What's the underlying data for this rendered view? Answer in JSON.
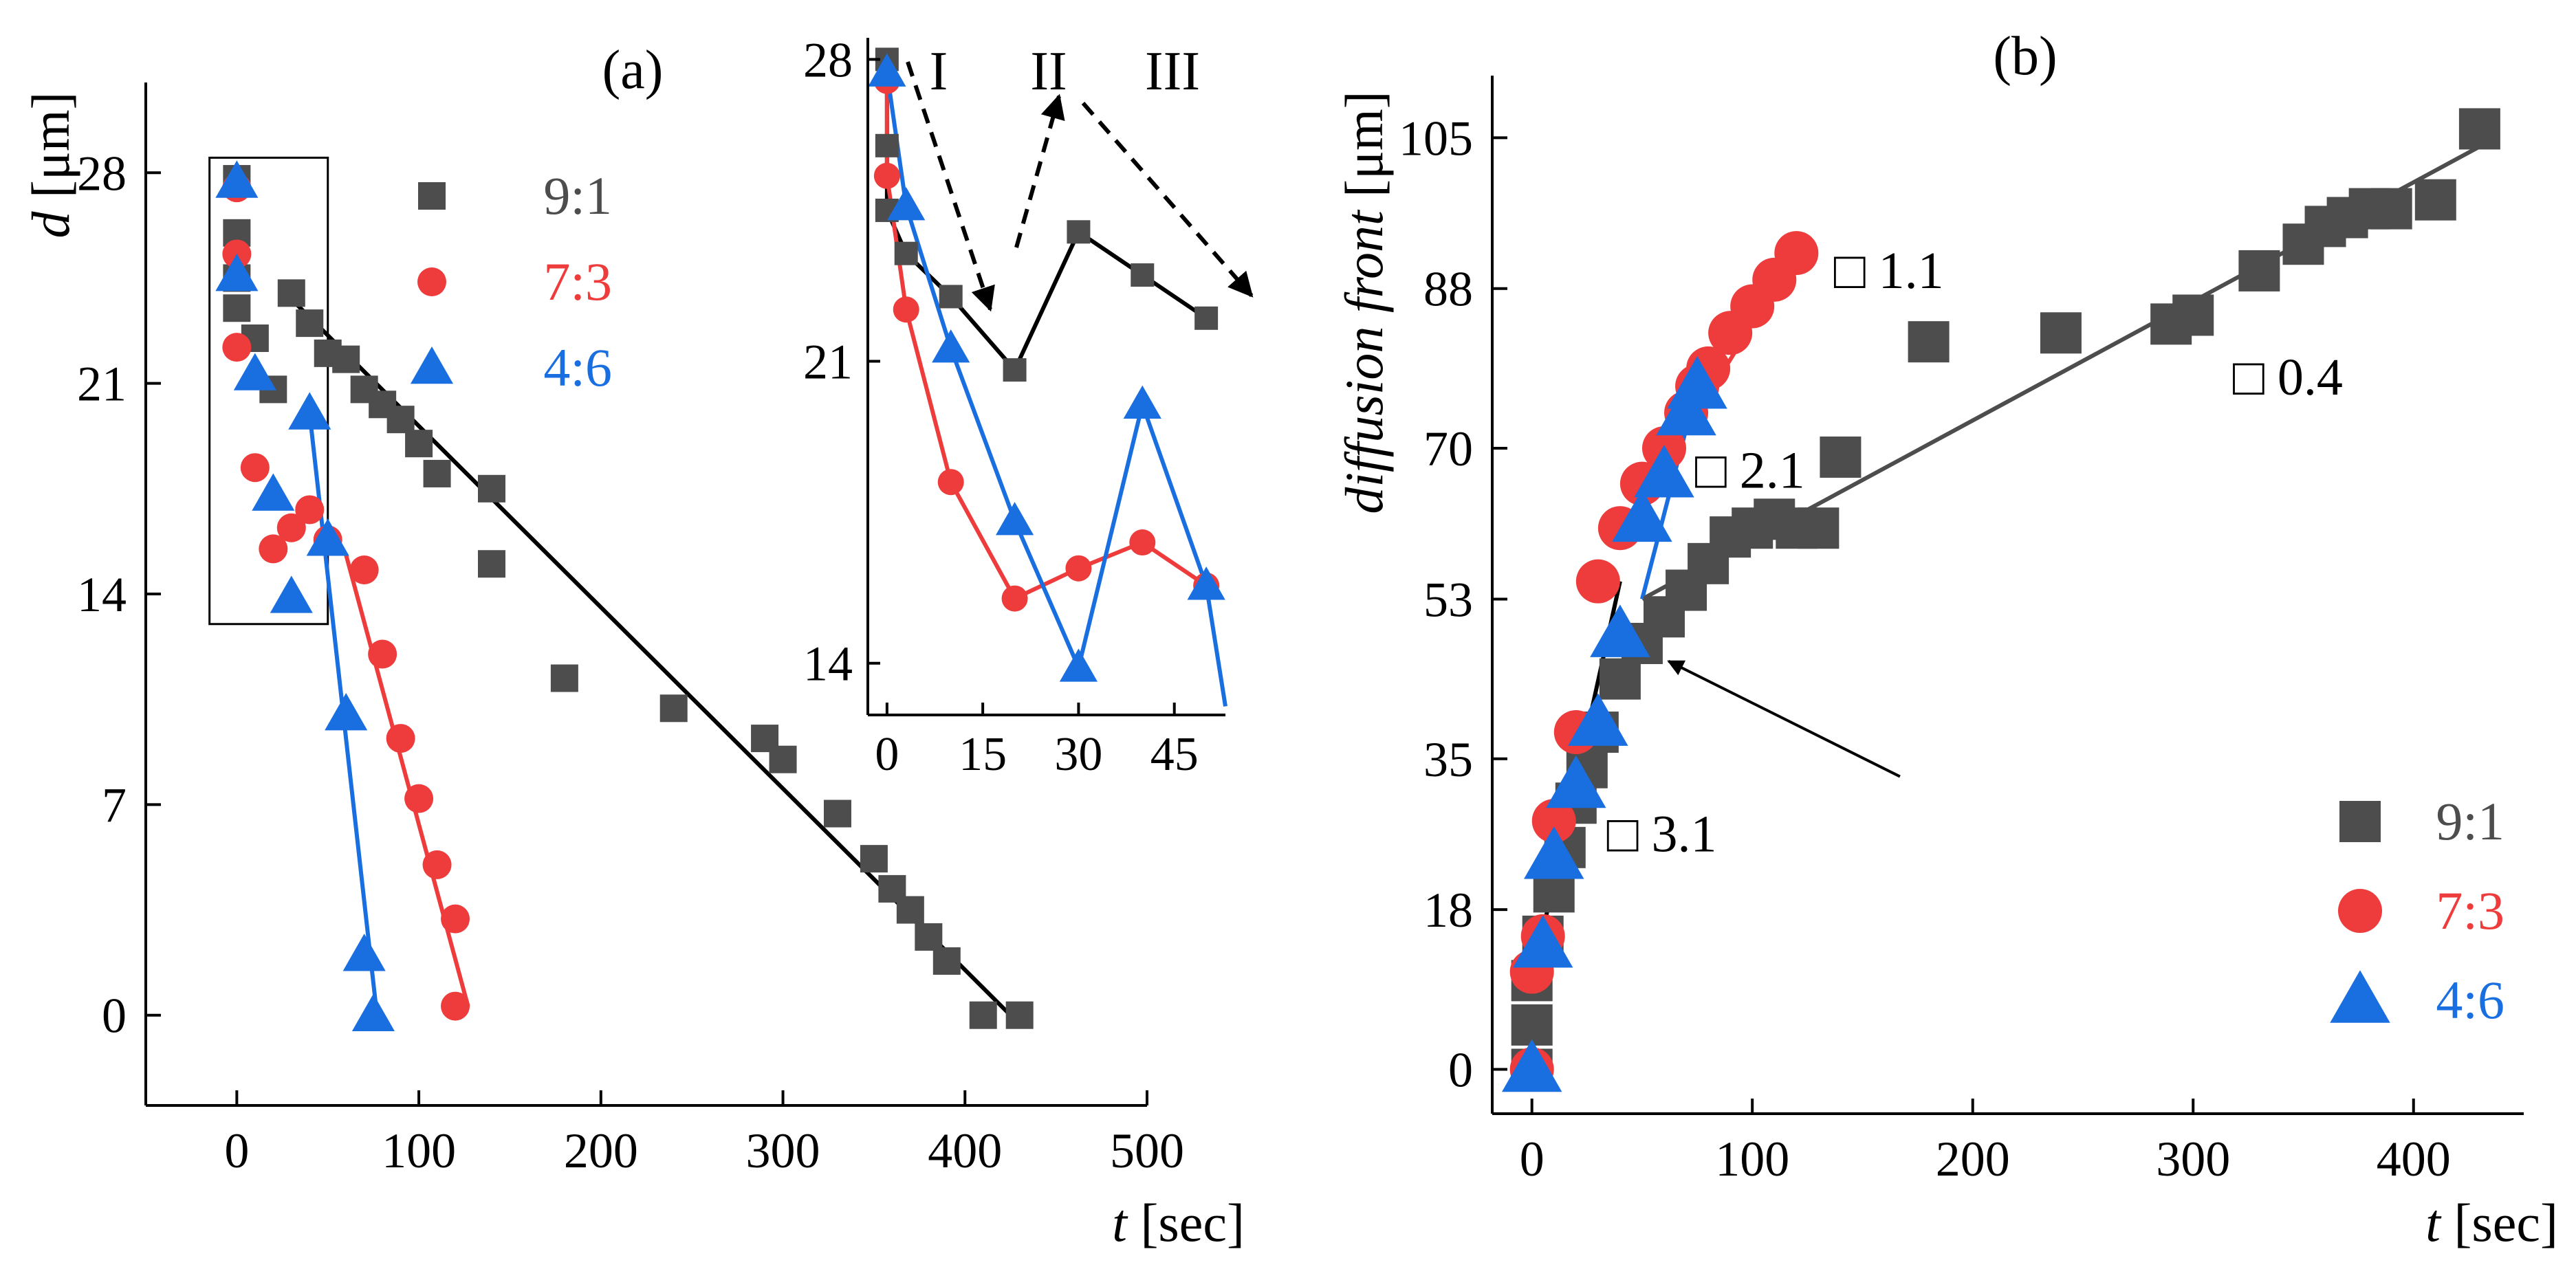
{
  "chart_data": [
    {
      "panel": "(a)",
      "type": "scatter",
      "xlabel_var": "t",
      "xlabel_unit": "[sec]",
      "ylabel_var": "d",
      "ylabel_unit": "[μm]",
      "xlim": [
        -50,
        500
      ],
      "ylim": [
        -3,
        31
      ],
      "xticks": [
        0,
        100,
        200,
        300,
        400,
        500
      ],
      "yticks": [
        0,
        7,
        14,
        21,
        28
      ],
      "legend": "top-right",
      "series": [
        {
          "name": "9:1",
          "color": "#4d4d4d",
          "marker": "square",
          "points": [
            [
              0,
              27.8
            ],
            [
              0,
              26
            ],
            [
              0,
              24.5
            ],
            [
              0,
              23.5
            ],
            [
              10,
              22.5
            ],
            [
              20,
              20.8
            ],
            [
              30,
              24
            ],
            [
              40,
              23
            ],
            [
              50,
              22
            ],
            [
              60,
              21.8
            ],
            [
              70,
              20.8
            ],
            [
              80,
              20.3
            ],
            [
              90,
              19.8
            ],
            [
              100,
              19
            ],
            [
              110,
              18
            ],
            [
              140,
              17.5
            ],
            [
              140,
              15
            ],
            [
              180,
              11.2
            ],
            [
              240,
              10.2
            ],
            [
              290,
              9.2
            ],
            [
              300,
              8.5
            ],
            [
              330,
              6.7
            ],
            [
              350,
              5.2
            ],
            [
              360,
              4.2
            ],
            [
              370,
              3.5
            ],
            [
              380,
              2.6
            ],
            [
              390,
              1.8
            ],
            [
              410,
              0
            ],
            [
              430,
              0
            ]
          ]
        },
        {
          "name": "7:3",
          "color": "#ee3b3b",
          "marker": "circle",
          "points": [
            [
              0,
              27.5
            ],
            [
              0,
              25.3
            ],
            [
              0,
              22.2
            ],
            [
              10,
              18.2
            ],
            [
              20,
              15.5
            ],
            [
              30,
              16.2
            ],
            [
              40,
              16.8
            ],
            [
              50,
              15.8
            ],
            [
              70,
              14.8
            ],
            [
              80,
              12
            ],
            [
              90,
              9.2
            ],
            [
              100,
              7.2
            ],
            [
              110,
              5
            ],
            [
              120,
              3.2
            ],
            [
              120,
              0.3
            ]
          ]
        },
        {
          "name": "4:6",
          "color": "#1a6fe0",
          "marker": "triangle",
          "points": [
            [
              0,
              27.7
            ],
            [
              0,
              24.6
            ],
            [
              10,
              21.3
            ],
            [
              20,
              17.3
            ],
            [
              30,
              13.9
            ],
            [
              40,
              20
            ],
            [
              50,
              15.8
            ],
            [
              60,
              10
            ],
            [
              70,
              2
            ],
            [
              75,
              0
            ]
          ]
        }
      ],
      "fit_lines": [
        {
          "series": "9:1",
          "color": "#000000",
          "points": [
            [
              30,
              23.8
            ],
            [
              425,
              0
            ]
          ]
        },
        {
          "series": "7:3",
          "color": "#ee3b3b",
          "points": [
            [
              60,
              15.3
            ],
            [
              127,
              0.3
            ]
          ]
        },
        {
          "series": "4:6",
          "color": "#1a6fe0",
          "points": [
            [
              40,
              20
            ],
            [
              77,
              0
            ]
          ]
        }
      ],
      "highlight_box": [
        [
          -15,
          13
        ],
        [
          50,
          28.5
        ]
      ],
      "inset": {
        "xlim": [
          -3,
          53
        ],
        "ylim": [
          12.8,
          28.5
        ],
        "xticks": [
          0,
          15,
          30,
          45
        ],
        "yticks": [
          14,
          21,
          28
        ],
        "series": [
          {
            "name": "9:1",
            "points": [
              [
                0,
                28
              ],
              [
                0,
                26
              ],
              [
                0,
                24.5
              ],
              [
                3,
                23.5
              ],
              [
                10,
                22.5
              ],
              [
                20,
                20.8
              ],
              [
                30,
                24
              ],
              [
                40,
                23
              ],
              [
                50,
                22
              ]
            ]
          },
          {
            "name": "7:3",
            "points": [
              [
                0,
                27.5
              ],
              [
                0,
                25.3
              ],
              [
                3,
                22.2
              ],
              [
                10,
                18.2
              ],
              [
                20,
                15.5
              ],
              [
                30,
                16.2
              ],
              [
                40,
                16.8
              ],
              [
                50,
                15.8
              ]
            ]
          },
          {
            "name": "4:6",
            "points": [
              [
                0,
                27.7
              ],
              [
                3,
                24.6
              ],
              [
                10,
                21.3
              ],
              [
                20,
                17.3
              ],
              [
                30,
                13.9
              ],
              [
                40,
                20
              ],
              [
                50,
                15.8
              ],
              [
                53,
                13
              ]
            ]
          }
        ],
        "regions": [
          "I",
          "II",
          "III"
        ]
      }
    },
    {
      "panel": "(b)",
      "type": "scatter",
      "xlabel_var": "t",
      "xlabel_unit": "[sec]",
      "ylabel_var": "diffusion front",
      "ylabel_unit": "[μm]",
      "xlim": [
        -18,
        450
      ],
      "ylim": [
        -5,
        112
      ],
      "xticks": [
        0,
        100,
        200,
        300,
        400
      ],
      "yticks": [
        0,
        18,
        35,
        53,
        70,
        88,
        105
      ],
      "legend": "bottom-right",
      "series": [
        {
          "name": "9:1",
          "color": "#4d4d4d",
          "marker": "square",
          "points": [
            [
              0,
              0
            ],
            [
              0,
              5
            ],
            [
              0,
              10
            ],
            [
              5,
              15
            ],
            [
              10,
              20
            ],
            [
              15,
              25
            ],
            [
              20,
              30
            ],
            [
              25,
              34
            ],
            [
              30,
              38
            ],
            [
              40,
              44
            ],
            [
              50,
              48
            ],
            [
              60,
              51
            ],
            [
              70,
              54
            ],
            [
              80,
              57
            ],
            [
              90,
              60
            ],
            [
              100,
              61
            ],
            [
              110,
              62
            ],
            [
              120,
              61
            ],
            [
              130,
              61
            ],
            [
              140,
              69
            ],
            [
              180,
              82
            ],
            [
              240,
              83
            ],
            [
              290,
              84
            ],
            [
              300,
              85
            ],
            [
              330,
              90
            ],
            [
              350,
              93
            ],
            [
              360,
              95
            ],
            [
              370,
              96
            ],
            [
              380,
              97
            ],
            [
              390,
              97
            ],
            [
              410,
              98
            ],
            [
              430,
              106
            ]
          ]
        },
        {
          "name": "7:3",
          "color": "#ee3b3b",
          "marker": "circle",
          "points": [
            [
              0,
              0
            ],
            [
              0,
              11
            ],
            [
              5,
              15
            ],
            [
              10,
              28
            ],
            [
              20,
              38
            ],
            [
              30,
              55
            ],
            [
              40,
              61
            ],
            [
              50,
              66
            ],
            [
              60,
              70
            ],
            [
              70,
              74
            ],
            [
              75,
              77
            ],
            [
              80,
              79
            ],
            [
              90,
              83
            ],
            [
              100,
              86
            ],
            [
              110,
              89
            ],
            [
              120,
              92
            ]
          ]
        },
        {
          "name": "4:6",
          "color": "#1a6fe0",
          "marker": "triangle",
          "points": [
            [
              0,
              0
            ],
            [
              5,
              14
            ],
            [
              10,
              24
            ],
            [
              20,
              32
            ],
            [
              30,
              39
            ],
            [
              40,
              49
            ],
            [
              50,
              62
            ],
            [
              60,
              67
            ],
            [
              70,
              74
            ],
            [
              75,
              77
            ]
          ]
        }
      ],
      "fit_lines": [
        {
          "series": "9:1",
          "color": "#4d4d4d",
          "points": [
            [
              50,
              53
            ],
            [
              430,
              104
            ]
          ]
        },
        {
          "series": "9:1",
          "color": "#000000",
          "points": [
            [
              0,
              10
            ],
            [
              40,
              55
            ]
          ]
        },
        {
          "series": "7:3",
          "color": "#ee3b3b",
          "points": [
            [
              40,
              60
            ],
            [
              120,
              92
            ]
          ]
        },
        {
          "series": "4:6",
          "color": "#1a6fe0",
          "points": [
            [
              50,
              53
            ],
            [
              75,
              77
            ]
          ]
        }
      ],
      "annotations": [
        {
          "text": "□ 1.1",
          "x": 137,
          "y": 90
        },
        {
          "text": "□ 0.4",
          "x": 318,
          "y": 78
        },
        {
          "text": "□ 2.1",
          "x": 74,
          "y": 67.5
        },
        {
          "text": "□ 3.1",
          "x": 34,
          "y": 26.5
        }
      ],
      "arrow": {
        "from": [
          167,
          33
        ],
        "to": [
          62,
          46
        ]
      }
    }
  ]
}
